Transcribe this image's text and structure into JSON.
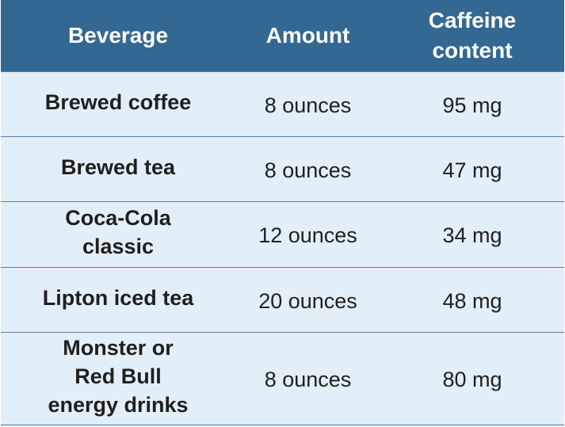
{
  "table": {
    "headers": [
      "Beverage",
      "Amount",
      "Caffeine\ncontent"
    ],
    "rows": [
      {
        "beverage": "Brewed coffee",
        "amount": "8 ounces",
        "caffeine": "95 mg"
      },
      {
        "beverage": "Brewed tea",
        "amount": "8 ounces",
        "caffeine": "47 mg"
      },
      {
        "beverage": "Coca-Cola\nclassic",
        "amount": "12 ounces",
        "caffeine": "34 mg"
      },
      {
        "beverage": "Lipton iced tea",
        "amount": "20 ounces",
        "caffeine": "48 mg"
      },
      {
        "beverage": "Monster or\nRed Bull\nenergy drinks",
        "amount": "8 ounces",
        "caffeine": "80 mg"
      }
    ]
  },
  "colors": {
    "header_bg": "#336893",
    "row_bg": "#e3eff8",
    "divider": "#4f7fa6"
  }
}
